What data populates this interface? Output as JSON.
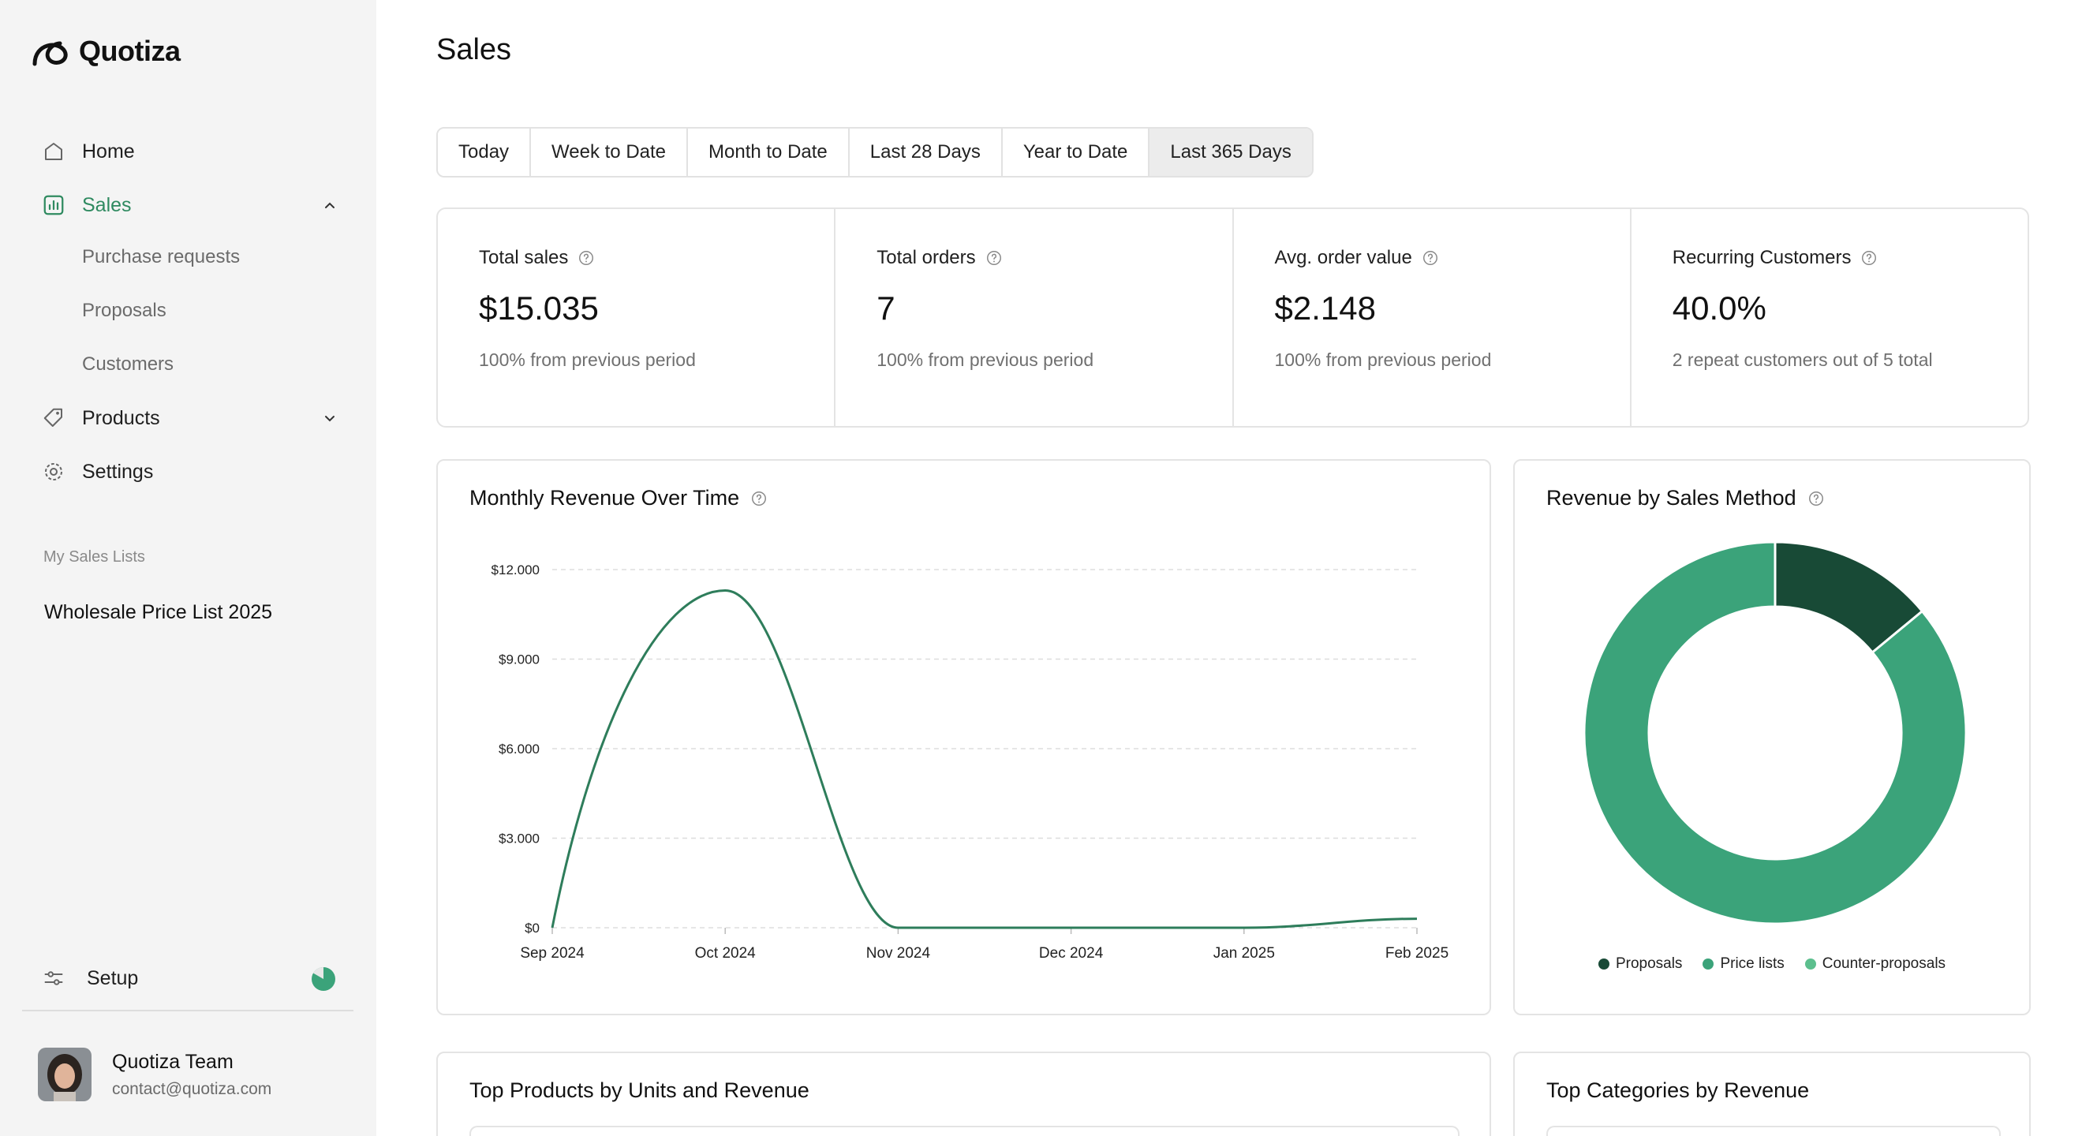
{
  "app": {
    "name": "Quotiza"
  },
  "sidebar": {
    "nav": [
      {
        "label": "Home"
      },
      {
        "label": "Sales"
      },
      {
        "label": "Products"
      },
      {
        "label": "Settings"
      }
    ],
    "sales_sub": [
      "Purchase requests",
      "Proposals",
      "Customers"
    ],
    "section_label": "My Sales Lists",
    "sales_list": "Wholesale Price List 2025",
    "setup_label": "Setup",
    "user": {
      "name": "Quotiza Team",
      "email": "contact@quotiza.com"
    }
  },
  "page": {
    "title": "Sales"
  },
  "tabs": [
    "Today",
    "Week to Date",
    "Month to Date",
    "Last 28 Days",
    "Year to Date",
    "Last 365 Days"
  ],
  "active_tab": "Last 365 Days",
  "kpis": [
    {
      "title": "Total sales",
      "value": "$15.035",
      "sub": "100% from previous period"
    },
    {
      "title": "Total orders",
      "value": "7",
      "sub": "100% from previous period"
    },
    {
      "title": "Avg. order value",
      "value": "$2.148",
      "sub": "100% from previous period"
    },
    {
      "title": "Recurring Customers",
      "value": "40.0%",
      "sub": "2 repeat customers out of 5 total"
    }
  ],
  "cards": {
    "revenue_title": "Monthly Revenue Over Time",
    "method_title": "Revenue by Sales Method",
    "top_products_title": "Top Products by Units and Revenue",
    "top_categories_title": "Top Categories by Revenue"
  },
  "colors": {
    "accent": "#2f8a60",
    "line": "#2e7d5b",
    "dark_green": "#184a36",
    "mid_green": "#3ba37a",
    "light_green": "#5cbf8e"
  },
  "chart_data": [
    {
      "type": "line",
      "title": "Monthly Revenue Over Time",
      "x": [
        "Sep 2024",
        "Oct 2024",
        "Nov 2024",
        "Dec 2024",
        "Jan 2025",
        "Feb 2025"
      ],
      "values": [
        0,
        11300,
        0,
        0,
        0,
        300
      ],
      "yticks": [
        "$12.000",
        "$9.000",
        "$6.000",
        "$3.000",
        "$0"
      ],
      "ylim": [
        0,
        12000
      ],
      "grid": true
    },
    {
      "type": "pie",
      "title": "Revenue by Sales Method",
      "labels": [
        "Proposals",
        "Price lists",
        "Counter-proposals"
      ],
      "values": [
        14,
        86,
        0
      ],
      "colors": [
        "#184a36",
        "#3ba37a",
        "#5cbf8e"
      ],
      "legend": "bottom"
    }
  ]
}
